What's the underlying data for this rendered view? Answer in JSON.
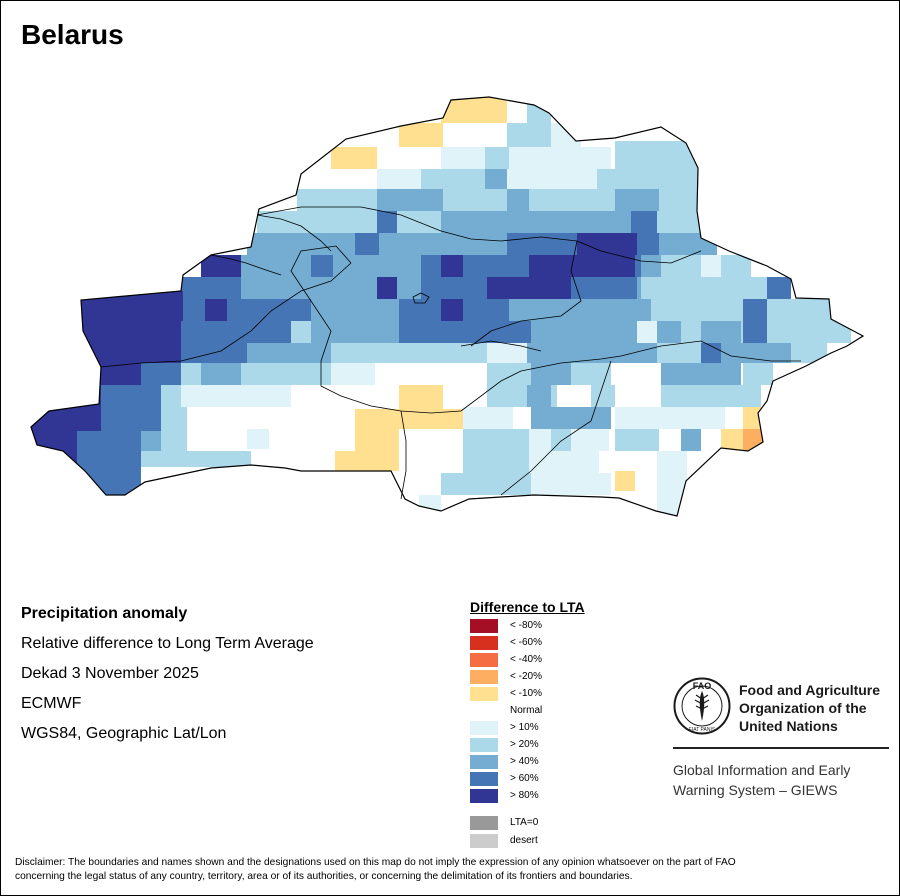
{
  "title": "Belarus",
  "info": {
    "heading": "Precipitation anomaly",
    "line1": "Relative difference to Long Term Average",
    "line2": "Dekad 3 November 2025",
    "line3": "ECMWF",
    "line4": "WGS84, Geographic Lat/Lon"
  },
  "legend": {
    "title": "Difference to LTA",
    "items": [
      {
        "label": "< -80%",
        "color": "#a50f26"
      },
      {
        "label": "< -60%",
        "color": "#d7301f"
      },
      {
        "label": "< -40%",
        "color": "#f46d43"
      },
      {
        "label": "< -20%",
        "color": "#fdae61"
      },
      {
        "label": "< -10%",
        "color": "#fee090"
      },
      {
        "label": "Normal",
        "color": "#ffffff"
      },
      {
        "label": "> 10%",
        "color": "#e0f3f8"
      },
      {
        "label": "> 20%",
        "color": "#abd9e9"
      },
      {
        "label": "> 40%",
        "color": "#74add1"
      },
      {
        "label": "> 60%",
        "color": "#4575b4"
      },
      {
        "label": "> 80%",
        "color": "#313695"
      },
      {
        "label": "LTA=0",
        "color": "#999999"
      },
      {
        "label": "desert",
        "color": "#cccccc"
      }
    ]
  },
  "org": {
    "name_line1": "Food and Agriculture",
    "name_line2": "Organization of the",
    "name_line3": "United Nations",
    "logo_text": "FAO",
    "logo_motto": "FIAT PANIS",
    "system_line1": "Global Information and Early",
    "system_line2": "Warning System – GIEWS"
  },
  "disclaimer": {
    "line1": "Disclaimer: The boundaries and names shown and the designations used on this map do not imply the expression of any opinion whatsoever on the part of FAO",
    "line2": "concerning the legal status of any country, territory, area or of its authorities, or concerning the delimitation of its frontiers and boundaries."
  }
}
